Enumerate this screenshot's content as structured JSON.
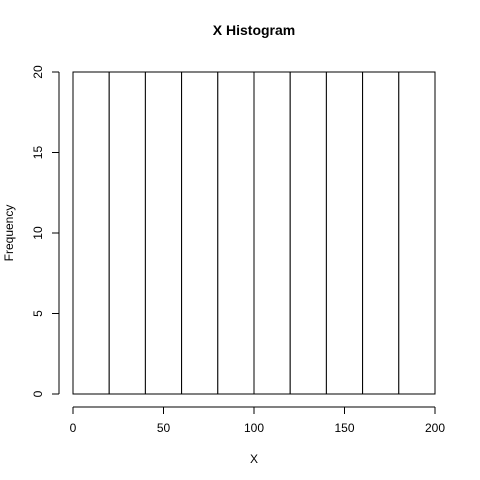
{
  "chart_data": {
    "type": "bar",
    "title": "X Histogram",
    "xlabel": "X",
    "ylabel": "Frequency",
    "bins": [
      {
        "start": 0,
        "end": 20,
        "count": 20
      },
      {
        "start": 20,
        "end": 40,
        "count": 20
      },
      {
        "start": 40,
        "end": 60,
        "count": 20
      },
      {
        "start": 60,
        "end": 80,
        "count": 20
      },
      {
        "start": 80,
        "end": 100,
        "count": 20
      },
      {
        "start": 100,
        "end": 120,
        "count": 20
      },
      {
        "start": 120,
        "end": 140,
        "count": 20
      },
      {
        "start": 140,
        "end": 160,
        "count": 20
      },
      {
        "start": 160,
        "end": 180,
        "count": 20
      },
      {
        "start": 180,
        "end": 200,
        "count": 20
      }
    ],
    "xlim": [
      0,
      200
    ],
    "ylim": [
      0,
      20
    ],
    "x_ticks": [
      0,
      50,
      100,
      150,
      200
    ],
    "y_ticks": [
      0,
      5,
      10,
      15,
      20
    ],
    "grid": false,
    "bar_fill": "#ffffff",
    "bar_stroke": "#000000"
  }
}
